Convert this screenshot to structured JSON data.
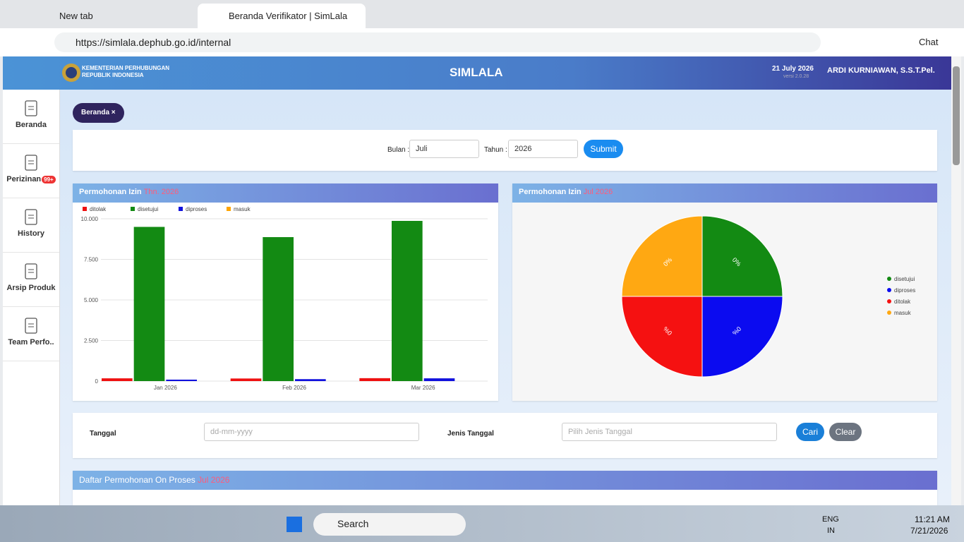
{
  "browser": {
    "tabs": [
      "New tab",
      "Beranda Verifikator | SimLala"
    ],
    "url": "https://simlala.dephub.go.id/internal",
    "chat": "Chat"
  },
  "header": {
    "org": [
      "KEMENTERIAN PERHUBUNGAN",
      "REPUBLIK INDONESIA"
    ],
    "title": "SIMLALA",
    "date": "21 July 2026",
    "version": "versi 2.0.28",
    "user": "ARDI KURNIAWAN, S.S.T.Pel."
  },
  "sidebar": {
    "items": [
      "Beranda",
      "Perizinan",
      "History",
      "Arsip Produk",
      "Team Perfo.."
    ],
    "badge": "99+"
  },
  "breadcrumb": "Beranda",
  "filter": {
    "month_label": "Bulan :",
    "month": "Juli",
    "year_label": "Tahun :",
    "year": "2026",
    "submit": "Submit"
  },
  "chart_data": [
    {
      "type": "bar",
      "title": "Permohonan Izin",
      "subtitle": "Thn. 2026",
      "categories": [
        "Jan 2026",
        "Feb 2026",
        "Mar 2026"
      ],
      "series": [
        {
          "name": "ditolak",
          "color": "#ee1111",
          "values": [
            170,
            160,
            180
          ]
        },
        {
          "name": "disetujui",
          "color": "#138a13",
          "values": [
            9500,
            8870,
            9870
          ]
        },
        {
          "name": "diproses",
          "color": "#1111dd",
          "values": [
            90,
            120,
            170
          ]
        },
        {
          "name": "masuk",
          "color": "#ffa500",
          "values": [
            0,
            0,
            0
          ]
        }
      ],
      "ylim": [
        0,
        10000
      ],
      "yticks": [
        0,
        {
          "value": 2500,
          "label": "2.500"
        },
        {
          "value": 5000,
          "label": "5.000"
        },
        {
          "value": 7500,
          "label": "7.500"
        },
        {
          "value": 10000,
          "label": "10.000"
        }
      ],
      "grid": true,
      "legend": "top"
    },
    {
      "type": "pie",
      "title": "Permohonan Izin",
      "subtitle": "Jul 2026",
      "categories": [
        "disetujui",
        "diproses",
        "ditolak",
        "masuk"
      ],
      "values": [
        0,
        0,
        0,
        0
      ],
      "value_labels": [
        "0%",
        "0%",
        "0%",
        "0%"
      ],
      "colors": [
        "#138a13",
        "#0b0bf0",
        "#f51111",
        "#ffa812"
      ],
      "legend": "right"
    }
  ],
  "search": {
    "date_label": "Tanggal",
    "date_placeholder": "dd-mm-yyyy",
    "type_label": "Jenis Tanggal",
    "type_placeholder": "Pilih Jenis Tanggal",
    "search": "Cari",
    "clear": "Clear"
  },
  "list_panel": {
    "title": "Daftar Permohonan On Proses",
    "period": "Jul 2026"
  },
  "taskbar": {
    "search": "Search",
    "lang": [
      "ENG",
      "IN"
    ],
    "time": "11:21 AM",
    "date": "7/21/2026"
  }
}
